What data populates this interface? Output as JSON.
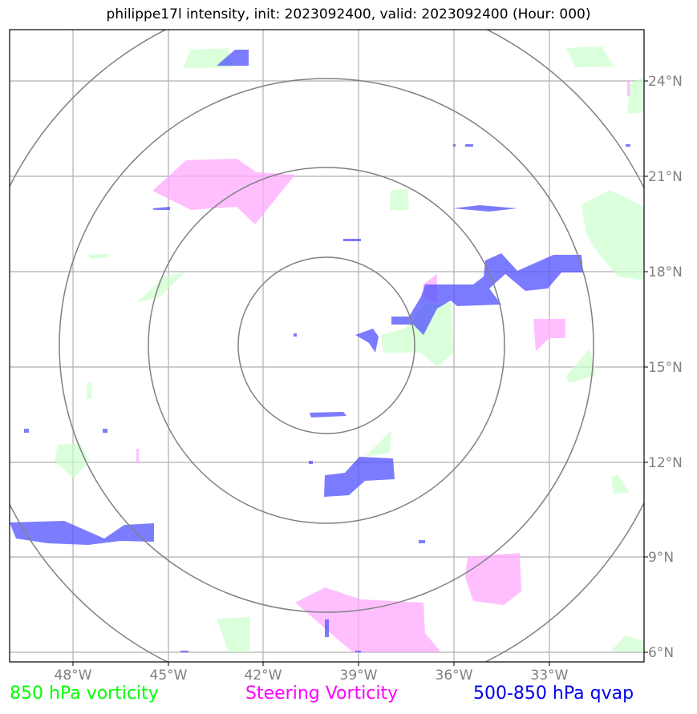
{
  "title": "philippe17l intensity, init: 2023092400, valid: 2023092400 (Hour: 000)",
  "map": {
    "lon_labels": [
      "48°W",
      "45°W",
      "42°W",
      "39°W",
      "36°W",
      "33°W"
    ],
    "lat_labels": [
      "24°N",
      "21°N",
      "18°N",
      "15°N",
      "12°N",
      "9°N",
      "6°N"
    ],
    "grid": true,
    "range_rings_count": 4,
    "colors": {
      "vorticity_850": "#ccffcc",
      "steering_vorticity": "#ffaaff",
      "qvap": "#5050ff",
      "ring": "#808080",
      "grid": "#b0b0b0"
    }
  },
  "legend": {
    "green": "850 hPa vorticity",
    "magenta": "Steering Vorticity",
    "blue": "500-850 hPa qvap"
  }
}
